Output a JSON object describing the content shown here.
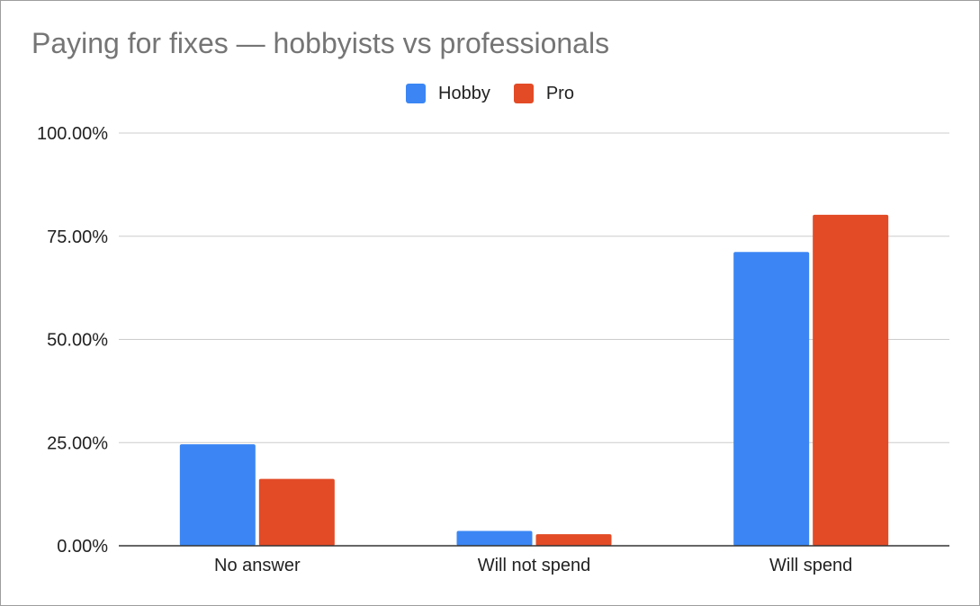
{
  "chart_data": {
    "type": "bar",
    "title": "Paying for fixes — hobbyists vs professionals",
    "categories": [
      "No answer",
      "Will not spend",
      "Will spend"
    ],
    "series": [
      {
        "name": "Hobby",
        "color": "#3b86f4",
        "values": [
          24.6,
          3.6,
          71.2
        ]
      },
      {
        "name": "Pro",
        "color": "#e24b26",
        "values": [
          16.2,
          2.8,
          80.2
        ]
      }
    ],
    "yticks": [
      "0.00%",
      "25.00%",
      "50.00%",
      "75.00%",
      "100.00%"
    ],
    "ylim": [
      0,
      100
    ],
    "xlabel": "",
    "ylabel": "",
    "grid": true,
    "legend_position": "top"
  }
}
